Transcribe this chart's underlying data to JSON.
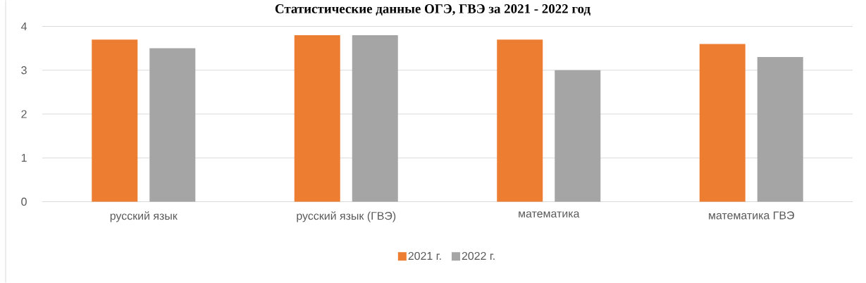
{
  "chart_data": {
    "type": "bar",
    "title": "Статистические данные ОГЭ, ГВЭ за 2021 - 2022 год",
    "categories": [
      "русский язык",
      "русский язык (ГВЭ)",
      "математика",
      "математика ГВЭ"
    ],
    "series": [
      {
        "name": "2021 г.",
        "color": "#ed7d31",
        "values": [
          3.7,
          3.8,
          3.7,
          3.6
        ]
      },
      {
        "name": "2022 г.",
        "color": "#a5a5a5",
        "values": [
          3.5,
          3.8,
          3.0,
          3.3
        ]
      }
    ],
    "ylim": [
      0,
      4
    ],
    "yticks": [
      0,
      1,
      2,
      3,
      4
    ],
    "grid": "y",
    "legend": "bottom"
  }
}
